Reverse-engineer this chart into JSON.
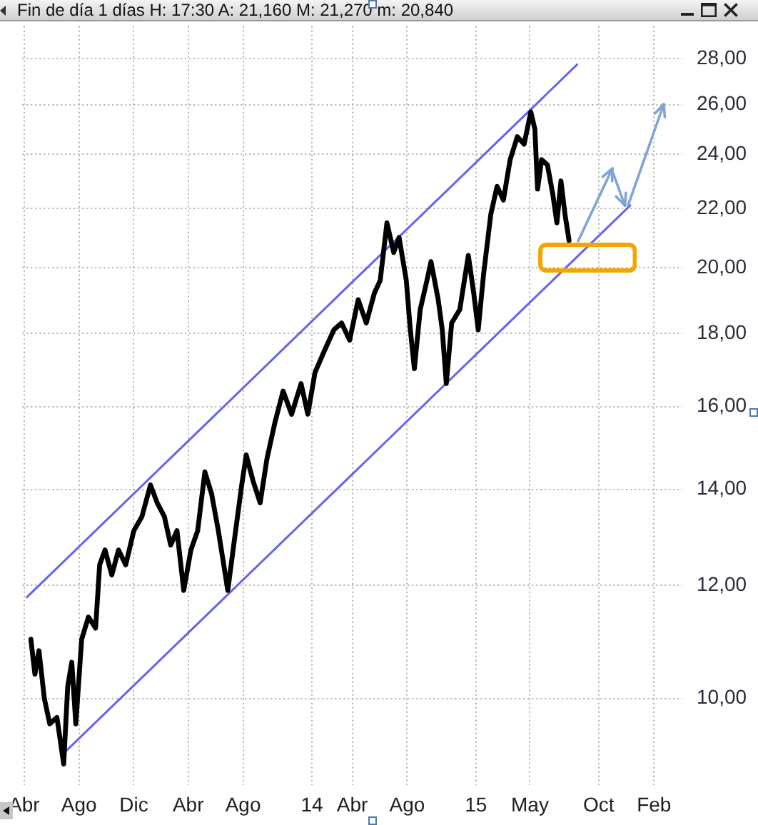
{
  "chart_data": {
    "type": "line",
    "title": "Fin de día 1 días H: 17:30 A: 21,160 M: 21,270 m: 20,840",
    "series": [
      {
        "type": "line",
        "color": "#000000",
        "x": [
          "2012-04-16",
          "2012-04-25",
          "2012-05-04",
          "2012-05-16",
          "2012-05-28",
          "2012-06-13",
          "2012-06-28",
          "2012-07-07",
          "2012-07-16",
          "2012-07-25",
          "2012-08-07",
          "2012-08-22",
          "2012-09-07",
          "2012-09-16",
          "2012-09-28",
          "2012-10-13",
          "2012-10-28",
          "2012-11-13",
          "2012-12-01",
          "2012-12-19",
          "2013-01-07",
          "2013-01-22",
          "2013-02-07",
          "2013-02-21",
          "2013-03-07",
          "2013-03-22",
          "2013-04-07",
          "2013-04-22",
          "2013-05-08",
          "2013-05-23",
          "2013-06-07",
          "2013-06-28",
          "2013-07-14",
          "2013-07-29",
          "2013-08-08",
          "2013-08-23",
          "2013-09-08",
          "2013-09-23",
          "2013-10-11",
          "2013-10-29",
          "2013-11-17",
          "2013-12-08",
          "2013-12-23",
          "2014-01-08",
          "2014-01-29",
          "2014-02-19",
          "2014-03-08",
          "2014-03-26",
          "2014-04-14",
          "2014-05-02",
          "2014-05-20",
          "2014-06-02",
          "2014-06-17",
          "2014-07-02",
          "2014-07-14",
          "2014-07-30",
          "2014-08-08",
          "2014-08-17",
          "2014-08-30",
          "2014-09-14",
          "2014-09-23",
          "2014-10-09",
          "2014-10-18",
          "2014-10-27",
          "2014-11-08",
          "2014-11-26",
          "2014-12-15",
          "2014-12-27",
          "2015-01-06",
          "2015-01-18",
          "2015-02-03",
          "2015-02-17",
          "2015-03-03",
          "2015-03-18",
          "2015-04-03",
          "2015-04-18",
          "2015-05-03",
          "2015-05-12",
          "2015-05-18",
          "2015-05-27",
          "2015-06-09",
          "2015-06-21",
          "2015-06-30",
          "2015-07-09",
          "2015-07-18",
          "2015-07-27"
        ],
        "values": [
          11.0,
          10.4,
          10.8,
          10.0,
          9.6,
          9.7,
          9.0,
          10.2,
          10.6,
          9.6,
          11.0,
          11.4,
          11.2,
          12.4,
          12.7,
          12.2,
          12.7,
          12.4,
          13.1,
          13.4,
          14.1,
          13.7,
          13.4,
          12.8,
          13.1,
          11.9,
          12.7,
          13.1,
          14.4,
          13.9,
          13.1,
          11.9,
          13.0,
          14.1,
          14.8,
          14.2,
          13.7,
          14.7,
          15.6,
          16.4,
          15.8,
          16.6,
          15.8,
          16.9,
          17.5,
          18.1,
          18.3,
          17.8,
          19.0,
          18.3,
          19.2,
          19.6,
          21.5,
          20.5,
          21.0,
          19.6,
          18.1,
          17.0,
          18.7,
          19.6,
          20.2,
          19.0,
          18.1,
          16.6,
          18.3,
          18.7,
          20.4,
          19.2,
          18.1,
          19.8,
          21.8,
          22.8,
          22.3,
          23.8,
          24.7,
          24.4,
          25.7,
          25.0,
          22.7,
          23.8,
          23.6,
          22.5,
          21.5,
          23.0,
          21.8,
          20.9
        ]
      },
      {
        "type": "line",
        "color": "#6464f0",
        "x": [
          "2012-04-07",
          "2015-08-14"
        ],
        "values": [
          11.77,
          27.74
        ]
      },
      {
        "type": "line",
        "color": "#6464f0",
        "x": [
          "2012-06-27",
          "2015-12-10"
        ],
        "values": [
          9.15,
          22.11
        ]
      }
    ],
    "xlim": [
      "2012-03-28",
      "2016-04-04"
    ],
    "xticks": [
      {
        "value": "2012-04-01",
        "label": "Abr"
      },
      {
        "value": "2012-08-01",
        "label": "Ago"
      },
      {
        "value": "2012-12-01",
        "label": "Dic"
      },
      {
        "value": "2013-04-01",
        "label": "Abr"
      },
      {
        "value": "2013-08-01",
        "label": "Ago"
      },
      {
        "value": "2014-01-01",
        "label": "14"
      },
      {
        "value": "2014-04-01",
        "label": "Abr"
      },
      {
        "value": "2014-08-01",
        "label": "Ago"
      },
      {
        "value": "2015-01-01",
        "label": "15"
      },
      {
        "value": "2015-05-01",
        "label": "May"
      },
      {
        "value": "2015-10-01",
        "label": "Oct"
      },
      {
        "value": "2016-02-01",
        "label": "Feb"
      }
    ],
    "ylim": [
      8.7,
      29.5
    ],
    "yticks": [
      {
        "value": 10,
        "label": "10,00"
      },
      {
        "value": 12,
        "label": "12,00"
      },
      {
        "value": 14,
        "label": "14,00"
      },
      {
        "value": 16,
        "label": "16,00"
      },
      {
        "value": 18,
        "label": "18,00"
      },
      {
        "value": 20,
        "label": "20,00"
      },
      {
        "value": 22,
        "label": "22,00"
      },
      {
        "value": 24,
        "label": "24,00"
      },
      {
        "value": 26,
        "label": "26,00"
      },
      {
        "value": 28,
        "label": "28,00"
      }
    ],
    "log": "y",
    "grid": true,
    "marker": "none",
    "line_style": "solid"
  }
}
